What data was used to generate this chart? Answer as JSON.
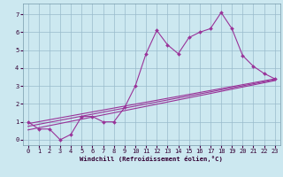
{
  "xlabel": "Windchill (Refroidissement éolien,°C)",
  "bg_color": "#cce8f0",
  "line_color": "#993399",
  "grid_color": "#99bbcc",
  "xlim": [
    -0.5,
    23.5
  ],
  "ylim": [
    -0.3,
    7.6
  ],
  "xticks": [
    0,
    1,
    2,
    3,
    4,
    5,
    6,
    7,
    8,
    9,
    10,
    11,
    12,
    13,
    14,
    15,
    16,
    17,
    18,
    19,
    20,
    21,
    22,
    23
  ],
  "yticks": [
    0,
    1,
    2,
    3,
    4,
    5,
    6,
    7
  ],
  "data_x": [
    0,
    1,
    2,
    3,
    4,
    5,
    6,
    7,
    8,
    9,
    10,
    11,
    12,
    13,
    14,
    15,
    16,
    17,
    18,
    19,
    20,
    21,
    22,
    23
  ],
  "data_y": [
    1.0,
    0.6,
    0.6,
    0.0,
    0.3,
    1.3,
    1.3,
    1.0,
    1.0,
    1.8,
    3.0,
    4.8,
    6.1,
    5.3,
    4.8,
    5.7,
    6.0,
    6.2,
    7.1,
    6.2,
    4.7,
    4.1,
    3.7,
    3.4
  ],
  "trend1_x": [
    0,
    23
  ],
  "trend1_y": [
    0.55,
    3.3
  ],
  "trend2_x": [
    0,
    23
  ],
  "trend2_y": [
    0.75,
    3.35
  ],
  "trend3_x": [
    0,
    23
  ],
  "trend3_y": [
    0.9,
    3.4
  ]
}
